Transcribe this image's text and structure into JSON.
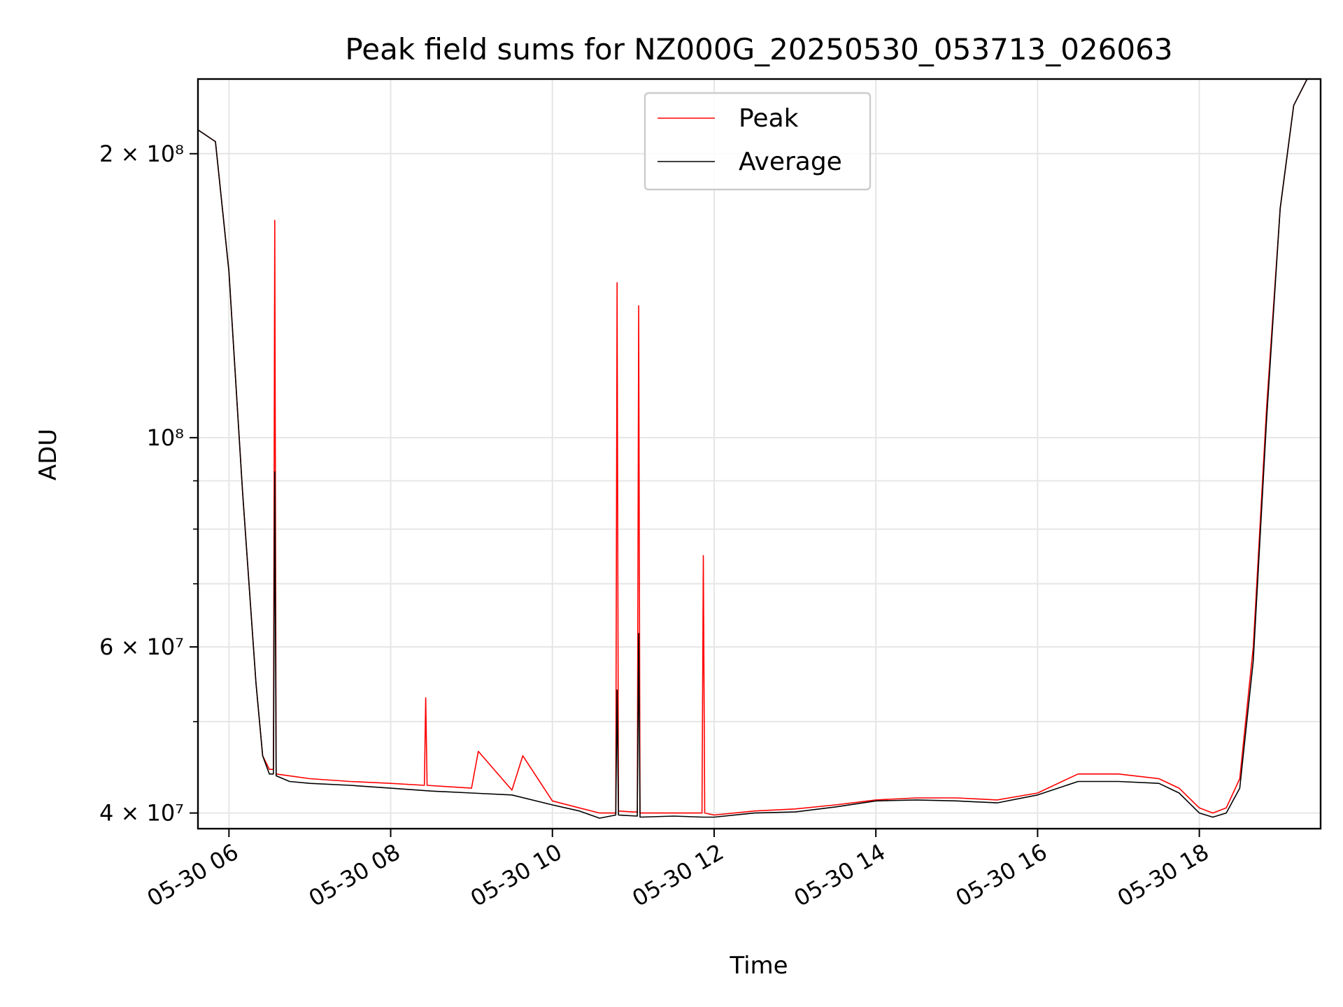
{
  "chart_data": {
    "type": "line",
    "title": "Peak field sums for NZ000G_20250530_053713_026063",
    "xlabel": "Time",
    "ylabel": "ADU",
    "x_scale": "time",
    "y_scale": "log",
    "xlim": [
      "2025-05-30 05:37",
      "2025-05-30 19:30"
    ],
    "ylim": [
      38500000,
      240000000
    ],
    "grid": true,
    "legend_position": "upper-center",
    "x_ticks": [
      {
        "value": "2025-05-30 06:00",
        "label": "05-30 06"
      },
      {
        "value": "2025-05-30 08:00",
        "label": "05-30 08"
      },
      {
        "value": "2025-05-30 10:00",
        "label": "05-30 10"
      },
      {
        "value": "2025-05-30 12:00",
        "label": "05-30 12"
      },
      {
        "value": "2025-05-30 14:00",
        "label": "05-30 14"
      },
      {
        "value": "2025-05-30 16:00",
        "label": "05-30 16"
      },
      {
        "value": "2025-05-30 18:00",
        "label": "05-30 18"
      }
    ],
    "y_ticks": [
      {
        "value": 40000000,
        "label": "4 × 10⁷"
      },
      {
        "value": 60000000,
        "label": "6 × 10⁷"
      },
      {
        "value": 100000000,
        "label": "10⁸"
      },
      {
        "value": 200000000,
        "label": "2 × 10⁸"
      }
    ],
    "y_minor_ticks": [
      50000000,
      70000000,
      80000000,
      90000000
    ],
    "series": [
      {
        "name": "Peak",
        "color": "#ff0000",
        "x": [
          "2025-05-30 05:37",
          "2025-05-30 05:50",
          "2025-05-30 06:00",
          "2025-05-30 06:10",
          "2025-05-30 06:20",
          "2025-05-30 06:25",
          "2025-05-30 06:30",
          "2025-05-30 06:33",
          "2025-05-30 06:34",
          "2025-05-30 06:35",
          "2025-05-30 06:45",
          "2025-05-30 07:00",
          "2025-05-30 07:30",
          "2025-05-30 08:00",
          "2025-05-30 08:25",
          "2025-05-30 08:26",
          "2025-05-30 08:27",
          "2025-05-30 09:00",
          "2025-05-30 09:05",
          "2025-05-30 09:30",
          "2025-05-30 09:38",
          "2025-05-30 10:00",
          "2025-05-30 10:20",
          "2025-05-30 10:35",
          "2025-05-30 10:47",
          "2025-05-30 10:48",
          "2025-05-30 10:49",
          "2025-05-30 11:00",
          "2025-05-30 11:03",
          "2025-05-30 11:04",
          "2025-05-30 11:05",
          "2025-05-30 11:30",
          "2025-05-30 11:51",
          "2025-05-30 11:52",
          "2025-05-30 11:53",
          "2025-05-30 12:00",
          "2025-05-30 12:30",
          "2025-05-30 13:00",
          "2025-05-30 13:30",
          "2025-05-30 14:00",
          "2025-05-30 14:30",
          "2025-05-30 15:00",
          "2025-05-30 15:30",
          "2025-05-30 16:00",
          "2025-05-30 16:30",
          "2025-05-30 17:00",
          "2025-05-30 17:30",
          "2025-05-30 17:45",
          "2025-05-30 18:00",
          "2025-05-30 18:10",
          "2025-05-30 18:20",
          "2025-05-30 18:30",
          "2025-05-30 18:40",
          "2025-05-30 18:50",
          "2025-05-30 19:00",
          "2025-05-30 19:10",
          "2025-05-30 19:20",
          "2025-05-30 19:30"
        ],
        "y": [
          212000000,
          206000000,
          150000000,
          88000000,
          55000000,
          46000000,
          44500000,
          44500000,
          170000000,
          44000000,
          43800000,
          43500000,
          43200000,
          43000000,
          42800000,
          53000000,
          42800000,
          42500000,
          46500000,
          42300000,
          46000000,
          41200000,
          40500000,
          40000000,
          40000000,
          146000000,
          40200000,
          40100000,
          40100000,
          138000000,
          40000000,
          40000000,
          40000000,
          75000000,
          40000000,
          39800000,
          40200000,
          40400000,
          40800000,
          41300000,
          41500000,
          41500000,
          41300000,
          42000000,
          44000000,
          44000000,
          43500000,
          42500000,
          40500000,
          40000000,
          40500000,
          43500000,
          60000000,
          108000000,
          175000000,
          225000000,
          240000000,
          240000000
        ]
      },
      {
        "name": "Average",
        "color": "#000000",
        "x": [
          "2025-05-30 05:37",
          "2025-05-30 05:50",
          "2025-05-30 06:00",
          "2025-05-30 06:10",
          "2025-05-30 06:20",
          "2025-05-30 06:25",
          "2025-05-30 06:30",
          "2025-05-30 06:33",
          "2025-05-30 06:34",
          "2025-05-30 06:35",
          "2025-05-30 06:45",
          "2025-05-30 07:00",
          "2025-05-30 07:30",
          "2025-05-30 08:00",
          "2025-05-30 08:30",
          "2025-05-30 09:00",
          "2025-05-30 09:30",
          "2025-05-30 10:00",
          "2025-05-30 10:20",
          "2025-05-30 10:35",
          "2025-05-30 10:47",
          "2025-05-30 10:48",
          "2025-05-30 10:49",
          "2025-05-30 11:03",
          "2025-05-30 11:04",
          "2025-05-30 11:05",
          "2025-05-30 11:30",
          "2025-05-30 11:52",
          "2025-05-30 12:00",
          "2025-05-30 12:30",
          "2025-05-30 13:00",
          "2025-05-30 13:30",
          "2025-05-30 14:00",
          "2025-05-30 14:30",
          "2025-05-30 15:00",
          "2025-05-30 15:30",
          "2025-05-30 16:00",
          "2025-05-30 16:30",
          "2025-05-30 17:00",
          "2025-05-30 17:30",
          "2025-05-30 17:45",
          "2025-05-30 18:00",
          "2025-05-30 18:10",
          "2025-05-30 18:20",
          "2025-05-30 18:30",
          "2025-05-30 18:40",
          "2025-05-30 18:50",
          "2025-05-30 19:00",
          "2025-05-30 19:10",
          "2025-05-30 19:20",
          "2025-05-30 19:30"
        ],
        "y": [
          212000000,
          206000000,
          150000000,
          88000000,
          55000000,
          46000000,
          44000000,
          44000000,
          92000000,
          43800000,
          43200000,
          43000000,
          42800000,
          42500000,
          42200000,
          42000000,
          41800000,
          40800000,
          40200000,
          39500000,
          39800000,
          54000000,
          39800000,
          39700000,
          62000000,
          39600000,
          39700000,
          39600000,
          39600000,
          40000000,
          40100000,
          40600000,
          41200000,
          41300000,
          41200000,
          41000000,
          41800000,
          43200000,
          43200000,
          43000000,
          42000000,
          40000000,
          39600000,
          40000000,
          42500000,
          58000000,
          105000000,
          175000000,
          225000000,
          240000000,
          240000000
        ]
      }
    ]
  }
}
